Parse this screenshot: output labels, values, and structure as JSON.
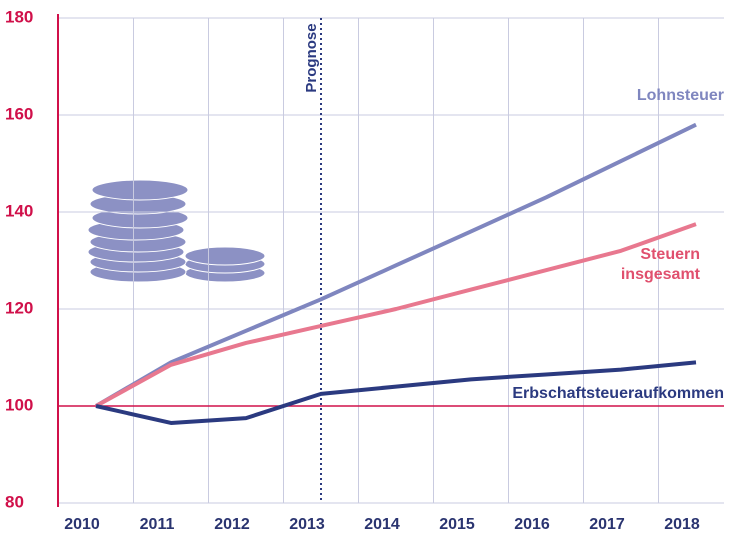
{
  "chart_data": {
    "type": "line",
    "x": [
      2010,
      2011,
      2012,
      2013,
      2014,
      2015,
      2016,
      2017,
      2018
    ],
    "xticks": [
      2010,
      2011,
      2012,
      2013,
      2014,
      2015,
      2016,
      2017,
      2018
    ],
    "ylim": [
      80,
      180
    ],
    "yticks": [
      80,
      100,
      120,
      140,
      160,
      180
    ],
    "forecast_label": "Prognose",
    "forecast_x": 2013,
    "series": [
      {
        "name": "Lohnsteuer",
        "color": "#7f86bf",
        "values": [
          100,
          109,
          115.5,
          122,
          129,
          136,
          143,
          150.5,
          158
        ]
      },
      {
        "name": "Steuern insgesamt",
        "color": "#e8788f",
        "values": [
          100,
          108.5,
          113,
          116.5,
          120,
          124,
          128,
          132,
          137.5
        ]
      },
      {
        "name": "Erbschaftsteueraufkommen",
        "color": "#2b3a80",
        "values": [
          100,
          96.5,
          97.5,
          102.5,
          104,
          105.5,
          106.5,
          107.5,
          109
        ]
      }
    ]
  }
}
